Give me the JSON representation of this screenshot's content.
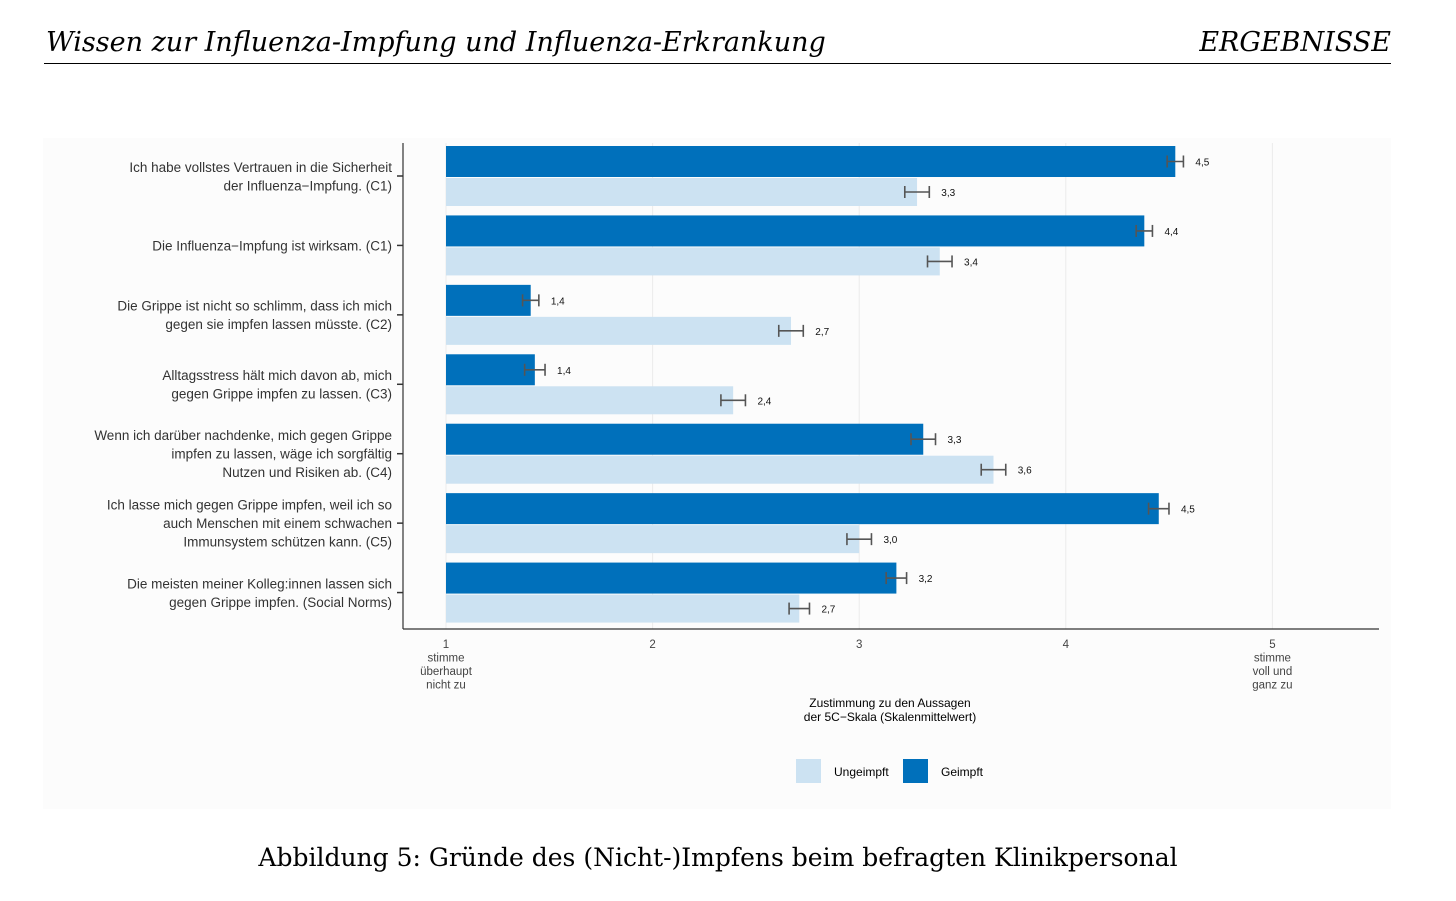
{
  "header": {
    "left_title": "Wissen zur Influenza-Impfung und Influenza-Erkrankung",
    "right_title": "ERGEBNISSE"
  },
  "caption": "Abbildung 5: Gründe des (Nicht-)Impfens beim befragten Klinikpersonal",
  "chart_data": {
    "type": "bar",
    "orientation": "horizontal",
    "title": "",
    "xlabel": "Zustimmung zu den Aussagen\nder 5C−Skala (Skalenmittelwert)",
    "xlim": [
      0.8,
      5.5
    ],
    "xticks": [
      {
        "value": 1,
        "label": "1\nstimme\nüberhaupt\nnicht zu"
      },
      {
        "value": 2,
        "label": "2"
      },
      {
        "value": 3,
        "label": "3"
      },
      {
        "value": 4,
        "label": "4"
      },
      {
        "value": 5,
        "label": "5\nstimme\nvoll und\nganz zu"
      }
    ],
    "categories": [
      "Ich habe vollstes Vertrauen in die Sicherheit\nder Influenza−Impfung. (C1)",
      "Die Influenza−Impfung ist wirksam. (C1)",
      "Die Grippe ist nicht so schlimm, dass ich mich\ngegen sie impfen lassen müsste. (C2)",
      "Alltagsstress hält mich davon ab, mich\ngegen Grippe impfen zu lassen. (C3)",
      "Wenn ich darüber nachdenke, mich gegen Grippe\nimpfen zu lassen, wäge ich sorgfältig\nNutzen und Risiken ab. (C4)",
      "Ich lasse mich gegen Grippe impfen, weil ich so\nauch Menschen mit einem schwachen\nImmunsystem schützen kann. (C5)",
      "Die meisten meiner Kolleg:innen lassen sich\ngegen Grippe impfen. (Social Norms)"
    ],
    "series": [
      {
        "name": "Geimpft",
        "color": "#0070bb",
        "values": [
          4.53,
          4.38,
          1.41,
          1.43,
          3.31,
          4.45,
          3.18
        ],
        "labels": [
          "4,5",
          "4,4",
          "1,4",
          "1,4",
          "3,3",
          "4,5",
          "3,2"
        ],
        "error": [
          0.02,
          0.02,
          0.02,
          0.03,
          0.04,
          0.03,
          0.03
        ]
      },
      {
        "name": "Ungeimpft",
        "color": "#cce2f2",
        "values": [
          3.28,
          3.39,
          2.67,
          2.39,
          3.65,
          3.0,
          2.71
        ],
        "labels": [
          "3,3",
          "3,4",
          "2,7",
          "2,4",
          "3,6",
          "3,0",
          "2,7"
        ],
        "error": [
          0.04,
          0.04,
          0.04,
          0.04,
          0.04,
          0.04,
          0.03
        ]
      }
    ],
    "legend": {
      "position": "bottom",
      "items": [
        {
          "name": "Ungeimpft",
          "color": "#cce2f2"
        },
        {
          "name": "Geimpft",
          "color": "#0070bb"
        }
      ]
    }
  }
}
